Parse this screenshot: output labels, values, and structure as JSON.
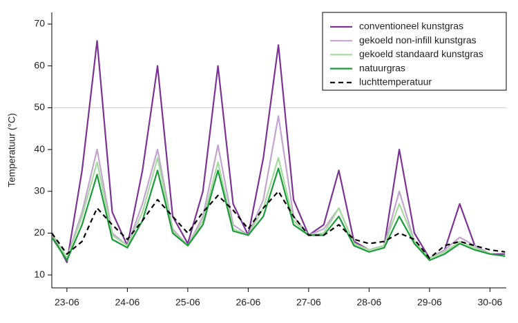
{
  "chart_data": {
    "type": "line",
    "y_label": "Temperatuur (°C)",
    "x": [
      22.75,
      23.0,
      23.25,
      23.5,
      23.75,
      24.0,
      24.25,
      24.5,
      24.75,
      25.0,
      25.25,
      25.5,
      25.75,
      26.0,
      26.25,
      26.5,
      26.75,
      27.0,
      27.25,
      27.5,
      27.75,
      28.0,
      28.25,
      28.5,
      28.75,
      29.0,
      29.25,
      29.5,
      29.75,
      30.0,
      30.25
    ],
    "series": [
      {
        "name": "conventioneel kunstgras",
        "color": "#7b3294",
        "line_style": "solid",
        "values": [
          20,
          13,
          35,
          66,
          25,
          17,
          35,
          60,
          24,
          17.5,
          30,
          60,
          27,
          19.5,
          38,
          65,
          28,
          19.5,
          22,
          35,
          18,
          16,
          17,
          40,
          20,
          14,
          16,
          27,
          17,
          15,
          15
        ]
      },
      {
        "name": "gekoeld non-infill kunstgras",
        "color": "#c2a5cf",
        "line_style": "solid",
        "values": [
          20,
          14,
          25,
          40,
          20,
          17,
          27,
          40,
          21,
          17,
          24,
          41,
          22,
          19.5,
          28,
          48,
          24,
          19.5,
          21,
          26,
          17.5,
          16,
          17,
          30,
          18,
          14,
          16,
          19,
          17,
          15,
          14.5
        ]
      },
      {
        "name": "gekoeld standaard kunstgras",
        "color": "#a6dba0",
        "line_style": "solid",
        "values": [
          20,
          14,
          24,
          37,
          19.5,
          17,
          25,
          38,
          20.5,
          17,
          23,
          37,
          21,
          19.5,
          26,
          38,
          23,
          19.5,
          20,
          26,
          17.5,
          16,
          17,
          27,
          18,
          14,
          15.5,
          18,
          16.5,
          15,
          14.5
        ]
      },
      {
        "name": "natuurgras",
        "color": "#1b9a3a",
        "line_style": "solid",
        "values": [
          19,
          13.5,
          22,
          34,
          18.5,
          16.5,
          23,
          35,
          20,
          17,
          22,
          35,
          20.5,
          19.5,
          24,
          35.5,
          22,
          19.5,
          19.5,
          24,
          17,
          15.5,
          16.5,
          24,
          17.5,
          13.5,
          15,
          17.5,
          16,
          15,
          14.5
        ]
      },
      {
        "name": "luchttemperatuur",
        "color": "#000000",
        "line_style": "dashed",
        "values": [
          20,
          15,
          18,
          26,
          22,
          18.5,
          23,
          28,
          24,
          20,
          25,
          29,
          25.5,
          21,
          26,
          30,
          24,
          19.5,
          19.5,
          22,
          18.5,
          17.5,
          18,
          20,
          18.5,
          14,
          17,
          18,
          17,
          16,
          15.5
        ]
      }
    ],
    "xlim": [
      22.75,
      30.27
    ],
    "xticks": [
      {
        "value": 23,
        "label": "23-06"
      },
      {
        "value": 24,
        "label": "24-06"
      },
      {
        "value": 25,
        "label": "25-06"
      },
      {
        "value": 26,
        "label": "26-06"
      },
      {
        "value": 27,
        "label": "27-06"
      },
      {
        "value": 28,
        "label": "28-06"
      },
      {
        "value": 29,
        "label": "29-06"
      },
      {
        "value": 30,
        "label": "30-06"
      }
    ],
    "ylim": [
      6.9,
      72.8
    ],
    "yticks": [
      10,
      20,
      30,
      40,
      50,
      60,
      70
    ],
    "reference_line": 50,
    "legend": "top-right"
  }
}
